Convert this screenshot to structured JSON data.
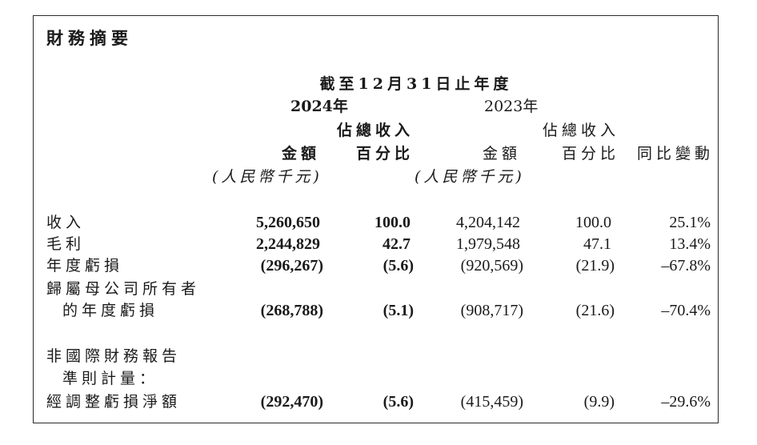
{
  "title": "財務摘要",
  "period_header": "截至12月31日止年度",
  "year_current": "2024年",
  "year_prior": "2023年",
  "col_headers": {
    "amount": "金額",
    "pct_line1": "佔總收入",
    "pct_line2": "百分比",
    "change": "同比變動",
    "unit": "(人民幣千元)"
  },
  "rows": [
    {
      "label": "收入",
      "amt_2024": "5,260,650",
      "pct_2024": "100.0",
      "amt_2023": "4,204,142",
      "pct_2023": "100.0",
      "change": "25.1%"
    },
    {
      "label": "毛利",
      "amt_2024": "2,244,829",
      "pct_2024": "42.7",
      "amt_2023": "1,979,548",
      "pct_2023": "47.1",
      "change": "13.4%"
    },
    {
      "label": "年度虧損",
      "amt_2024": "(296,267)",
      "pct_2024": "(5.6)",
      "amt_2023": "(920,569)",
      "pct_2023": "(21.9)",
      "change": "–67.8%"
    },
    {
      "label": "歸屬母公司所有者",
      "label_line2": "的年度虧損",
      "amt_2024": "(268,788)",
      "pct_2024": "(5.1)",
      "amt_2023": "(908,717)",
      "pct_2023": "(21.6)",
      "change": "–70.4%"
    },
    {
      "label": "非國際財務報告",
      "label_line2": "準則計量：",
      "label_line3": "經調整虧損淨額",
      "amt_2024": "(292,470)",
      "pct_2024": "(5.6)",
      "amt_2023": "(415,459)",
      "pct_2023": "(9.9)",
      "change": "–29.6%"
    }
  ]
}
